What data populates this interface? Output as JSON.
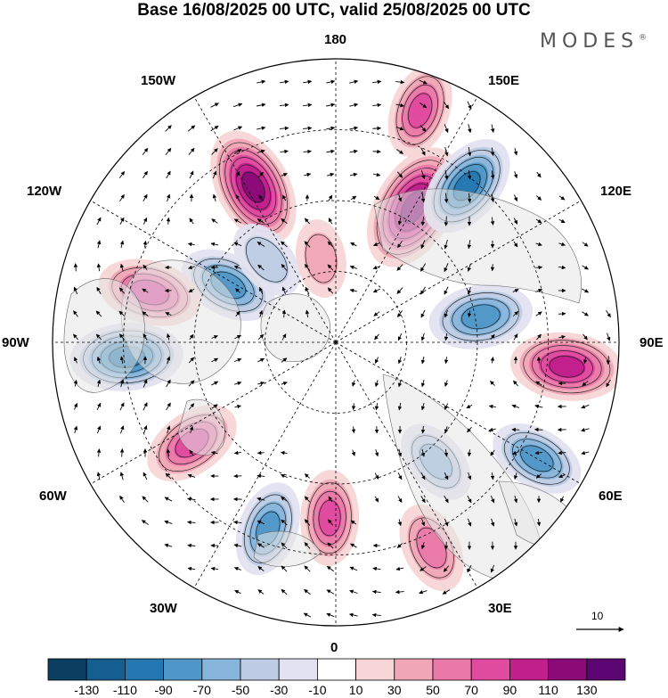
{
  "title": "Base 16/08/2025 00 UTC, valid 25/08/2025 00 UTC",
  "brand": "MODES",
  "brand_mark": "®",
  "longitude_labels": {
    "top": "180",
    "bottom": "0",
    "left": "90W",
    "right": "90E",
    "upper_left_1": "150W",
    "upper_left_2": "120W",
    "lower_left_1": "60W",
    "lower_left_2": "30W",
    "upper_right_1": "150E",
    "upper_right_2": "120E",
    "lower_right_1": "60E",
    "lower_right_2": "30E"
  },
  "vector_reference": {
    "value": "10"
  },
  "colorbar": {
    "colors": [
      "#0b3f61",
      "#145f8f",
      "#2478b1",
      "#4f97c8",
      "#88b5db",
      "#bdcbe4",
      "#e3e2f0",
      "#ffffff",
      "#f8d5d6",
      "#f0a6b6",
      "#ea78a8",
      "#e04a9f",
      "#c01f8c",
      "#8a0a78",
      "#5b0673"
    ],
    "labels": [
      "-130",
      "-110",
      "-90",
      "-70",
      "-50",
      "-30",
      "-10",
      "10",
      "30",
      "50",
      "70",
      "90",
      "110",
      "130"
    ]
  },
  "anomaly_centers": [
    {
      "sign": "positive",
      "level": 0.9,
      "angle_deg": 150,
      "dist": 0.55
    },
    {
      "sign": "negative",
      "level": 0.65,
      "angle_deg": 140,
      "dist": 0.72
    },
    {
      "sign": "positive",
      "level": 0.8,
      "angle_deg": 208,
      "dist": 0.62
    },
    {
      "sign": "positive",
      "level": 0.5,
      "angle_deg": 160,
      "dist": 0.87
    },
    {
      "sign": "negative",
      "level": 0.55,
      "angle_deg": 242,
      "dist": 0.43
    },
    {
      "sign": "positive",
      "level": 0.6,
      "angle_deg": 255,
      "dist": 0.68
    },
    {
      "sign": "negative",
      "level": 0.6,
      "angle_deg": 100,
      "dist": 0.52
    },
    {
      "sign": "negative",
      "level": 0.7,
      "angle_deg": 274,
      "dist": 0.74
    },
    {
      "sign": "positive",
      "level": 0.55,
      "angle_deg": 305,
      "dist": 0.62
    },
    {
      "sign": "negative",
      "level": 0.5,
      "angle_deg": 340,
      "dist": 0.7
    },
    {
      "sign": "positive",
      "level": 0.5,
      "angle_deg": 358,
      "dist": 0.62
    },
    {
      "sign": "positive",
      "level": 0.45,
      "angle_deg": 25,
      "dist": 0.8
    },
    {
      "sign": "negative",
      "level": 0.4,
      "angle_deg": 40,
      "dist": 0.55
    },
    {
      "sign": "negative",
      "level": 0.5,
      "angle_deg": 60,
      "dist": 0.82
    },
    {
      "sign": "positive",
      "level": 0.7,
      "angle_deg": 84,
      "dist": 0.82
    },
    {
      "sign": "negative",
      "level": 0.35,
      "angle_deg": 220,
      "dist": 0.38
    },
    {
      "sign": "positive",
      "level": 0.3,
      "angle_deg": 190,
      "dist": 0.3
    }
  ]
}
